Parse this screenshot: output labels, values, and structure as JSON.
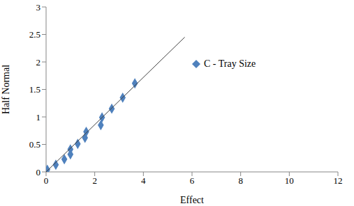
{
  "chart_data": {
    "type": "scatter",
    "xlabel": "Effect",
    "ylabel": "Half Normal",
    "xlim": [
      0,
      12
    ],
    "xticks": [
      0,
      2,
      4,
      6,
      8,
      10,
      12
    ],
    "ylim": [
      0,
      3
    ],
    "yticks": [
      0,
      0.5,
      1,
      1.5,
      2,
      2.5,
      3
    ],
    "grid": false,
    "legend": "right",
    "series": [
      {
        "name": "C - Tray Size",
        "type": "scatter",
        "color": "#4f81bd",
        "marker": "diamond",
        "x": [
          0.05,
          0.4,
          0.75,
          1.0,
          1.0,
          1.3,
          1.6,
          1.65,
          2.25,
          2.3,
          2.7,
          3.15,
          3.65
        ],
        "values": [
          0.04,
          0.13,
          0.23,
          0.32,
          0.41,
          0.51,
          0.62,
          0.73,
          0.85,
          0.99,
          1.15,
          1.35,
          1.61
        ]
      },
      {
        "type": "line",
        "color": "#404040",
        "line_style": "solid",
        "x": [
          0,
          5.7
        ],
        "values": [
          0,
          2.45
        ]
      }
    ]
  }
}
